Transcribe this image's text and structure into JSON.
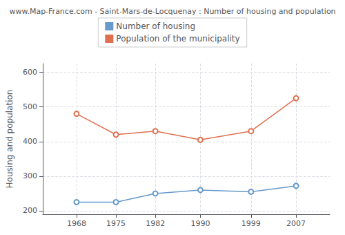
{
  "chart_data": {
    "type": "line",
    "title": "www.Map-France.com - Saint-Mars-de-Locquenay : Number of housing and population",
    "ylabel": "Housing and population",
    "x": [
      1968,
      1975,
      1982,
      1990,
      1999,
      2007
    ],
    "xlim": [
      1962,
      2013
    ],
    "xticks": [
      1968,
      1975,
      1982,
      1990,
      1999,
      2007
    ],
    "ylim": [
      190,
      625
    ],
    "yticks": [
      200,
      300,
      400,
      500,
      600
    ],
    "grid": true,
    "legend": "top",
    "marker": "circle",
    "series": [
      {
        "name": "Number of housing",
        "color": "#6699cc",
        "values": [
          225,
          225,
          250,
          260,
          255,
          272
        ]
      },
      {
        "name": "Population of the municipality",
        "color": "#e07050",
        "values": [
          480,
          420,
          430,
          405,
          430,
          525
        ]
      }
    ]
  }
}
